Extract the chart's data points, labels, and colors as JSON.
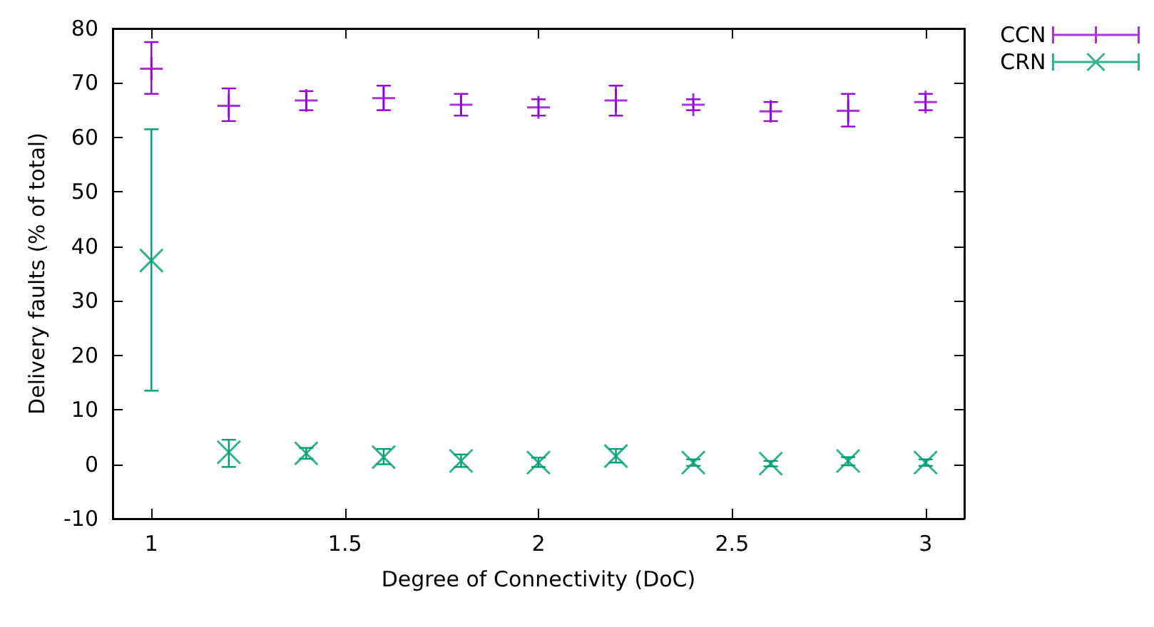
{
  "chart_data": {
    "type": "scatter",
    "xlabel": "Degree of Connectivity (DoC)",
    "ylabel": "Delivery faults (% of total)",
    "x": [
      1,
      1.2,
      1.4,
      1.6,
      1.8,
      2,
      2.2,
      2.4,
      2.6,
      2.8,
      3
    ],
    "series": [
      {
        "name": "CCN",
        "color": "#9400d3",
        "marker": "plus",
        "values": [
          72.6,
          65.8,
          66.8,
          67.2,
          66,
          65.5,
          66.8,
          66,
          64.8,
          64.9,
          66.5
        ],
        "errors": [
          [
            68,
            77.5
          ],
          [
            63,
            69
          ],
          [
            65,
            68.5
          ],
          [
            65,
            69.5
          ],
          [
            64,
            68
          ],
          [
            64,
            67
          ],
          [
            64,
            69.5
          ],
          [
            65,
            67
          ],
          [
            63,
            66.5
          ],
          [
            62,
            68
          ],
          [
            65,
            68
          ]
        ]
      },
      {
        "name": "CRN",
        "color": "#009e73",
        "marker": "cross",
        "values": [
          37.4,
          2.2,
          2,
          1.3,
          0.6,
          0.3,
          1.5,
          0.3,
          0.1,
          0.6,
          0.3
        ],
        "errors": [
          [
            13.5,
            61.5
          ],
          [
            -0.5,
            4.5
          ],
          [
            1,
            3
          ],
          [
            0,
            2.8
          ],
          [
            -0.5,
            1.8
          ],
          [
            -0.5,
            1.2
          ],
          [
            0.3,
            2.8
          ],
          [
            -0.3,
            0.9
          ],
          [
            -0.4,
            0.6
          ],
          [
            -0.2,
            1.3
          ],
          [
            -0.3,
            0.9
          ]
        ]
      }
    ],
    "xlim": [
      0.9,
      3.1
    ],
    "xticks": [
      1,
      1.5,
      2,
      2.5,
      3
    ],
    "ylim": [
      -10,
      80
    ],
    "yticks": [
      -10,
      0,
      10,
      20,
      30,
      40,
      50,
      60,
      70,
      80
    ],
    "grid": false,
    "legend": "top right"
  }
}
